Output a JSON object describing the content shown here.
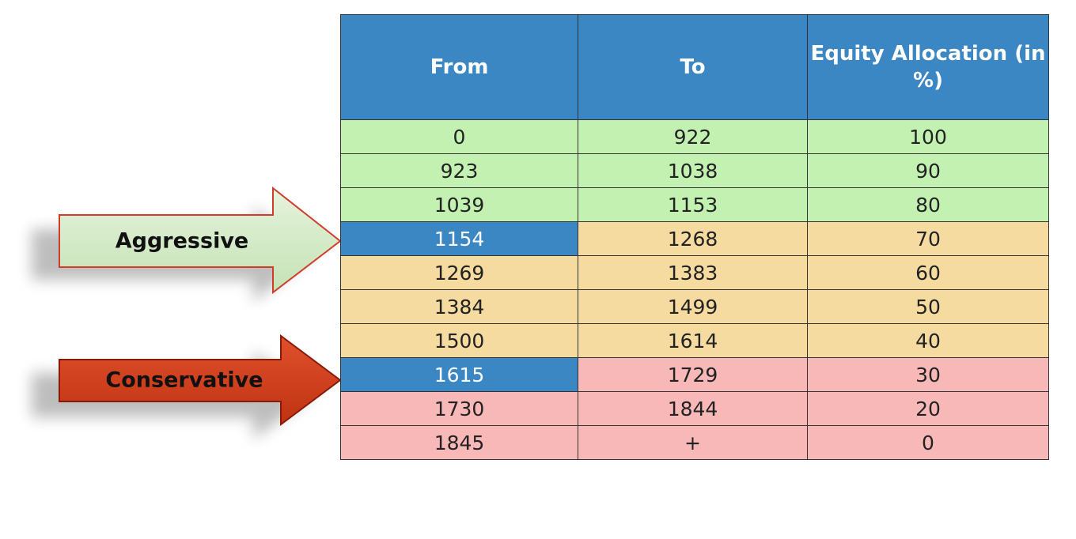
{
  "arrows": [
    {
      "label": "Aggressive"
    },
    {
      "label": "Conservative"
    }
  ],
  "table": {
    "header": [
      "From",
      "To",
      "Equity Allocation (in %)"
    ],
    "rows": [
      [
        0,
        922,
        100
      ],
      [
        923,
        1038,
        90
      ],
      [
        1039,
        1153,
        80
      ],
      [
        1154,
        1268,
        70
      ],
      [
        1269,
        1383,
        60
      ],
      [
        1384,
        1499,
        50
      ],
      [
        1500,
        1614,
        40
      ],
      [
        1615,
        1729,
        30
      ],
      [
        1730,
        1844,
        20
      ],
      [
        1845,
        "+",
        0
      ]
    ]
  }
}
